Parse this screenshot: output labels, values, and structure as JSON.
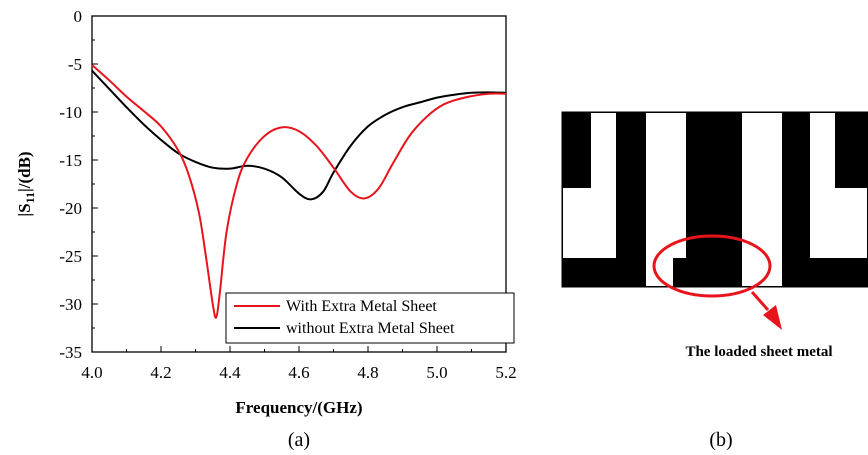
{
  "chart_data": {
    "type": "line",
    "xlabel": "Frequency/(GHz)",
    "ylabel_main": "|S",
    "ylabel_sub": "11",
    "ylabel_tail": "|/(dB)",
    "xlim": [
      4.0,
      5.2
    ],
    "ylim": [
      -35,
      0
    ],
    "x_ticks": [
      4.0,
      4.2,
      4.4,
      4.6,
      4.8,
      5.0,
      5.2
    ],
    "x_tick_labels": [
      "4.0",
      "4.2",
      "4.4",
      "4.6",
      "4.8",
      "5.0",
      "5.2"
    ],
    "y_ticks": [
      0,
      -5,
      -10,
      -15,
      -20,
      -25,
      -30,
      -35
    ],
    "y_tick_labels": [
      "0",
      "-5",
      "-10",
      "-15",
      "-20",
      "-25",
      "-30",
      "-35"
    ],
    "grid": false,
    "legend_position": "bottom-right",
    "series": [
      {
        "name": "With Extra Metal Sheet",
        "color": "#e8141c",
        "points": [
          [
            4.0,
            -5.1
          ],
          [
            4.05,
            -6.7
          ],
          [
            4.1,
            -8.4
          ],
          [
            4.15,
            -9.9
          ],
          [
            4.2,
            -11.5
          ],
          [
            4.25,
            -14.0
          ],
          [
            4.28,
            -16.5
          ],
          [
            4.31,
            -20.5
          ],
          [
            4.33,
            -25.0
          ],
          [
            4.35,
            -30.0
          ],
          [
            4.36,
            -31.4
          ],
          [
            4.37,
            -29.0
          ],
          [
            4.39,
            -22.5
          ],
          [
            4.42,
            -17.5
          ],
          [
            4.45,
            -14.8
          ],
          [
            4.5,
            -12.5
          ],
          [
            4.55,
            -11.6
          ],
          [
            4.6,
            -12.0
          ],
          [
            4.65,
            -13.5
          ],
          [
            4.7,
            -15.8
          ],
          [
            4.75,
            -18.3
          ],
          [
            4.79,
            -19.0
          ],
          [
            4.83,
            -18.0
          ],
          [
            4.87,
            -15.5
          ],
          [
            4.92,
            -12.5
          ],
          [
            4.97,
            -10.5
          ],
          [
            5.02,
            -9.2
          ],
          [
            5.08,
            -8.5
          ],
          [
            5.15,
            -8.1
          ],
          [
            5.2,
            -8.1
          ]
        ]
      },
      {
        "name": "without Extra Metal Sheet",
        "color": "#000000",
        "points": [
          [
            4.0,
            -5.7
          ],
          [
            4.05,
            -7.6
          ],
          [
            4.1,
            -9.5
          ],
          [
            4.15,
            -11.3
          ],
          [
            4.2,
            -12.9
          ],
          [
            4.25,
            -14.3
          ],
          [
            4.3,
            -15.2
          ],
          [
            4.35,
            -15.8
          ],
          [
            4.4,
            -15.9
          ],
          [
            4.45,
            -15.6
          ],
          [
            4.5,
            -15.9
          ],
          [
            4.55,
            -16.8
          ],
          [
            4.6,
            -18.5
          ],
          [
            4.635,
            -19.1
          ],
          [
            4.67,
            -18.3
          ],
          [
            4.7,
            -16.3
          ],
          [
            4.75,
            -13.5
          ],
          [
            4.8,
            -11.5
          ],
          [
            4.85,
            -10.3
          ],
          [
            4.9,
            -9.5
          ],
          [
            4.95,
            -9.0
          ],
          [
            5.0,
            -8.5
          ],
          [
            5.05,
            -8.2
          ],
          [
            5.1,
            -8.0
          ],
          [
            5.15,
            -7.95
          ],
          [
            5.2,
            -8.0
          ]
        ]
      }
    ]
  },
  "captions": {
    "a": "(a)",
    "b": "(b)"
  },
  "annotation": "The loaded sheet metal",
  "colors": {
    "accent_red": "#e8141c",
    "ink": "#000000"
  }
}
